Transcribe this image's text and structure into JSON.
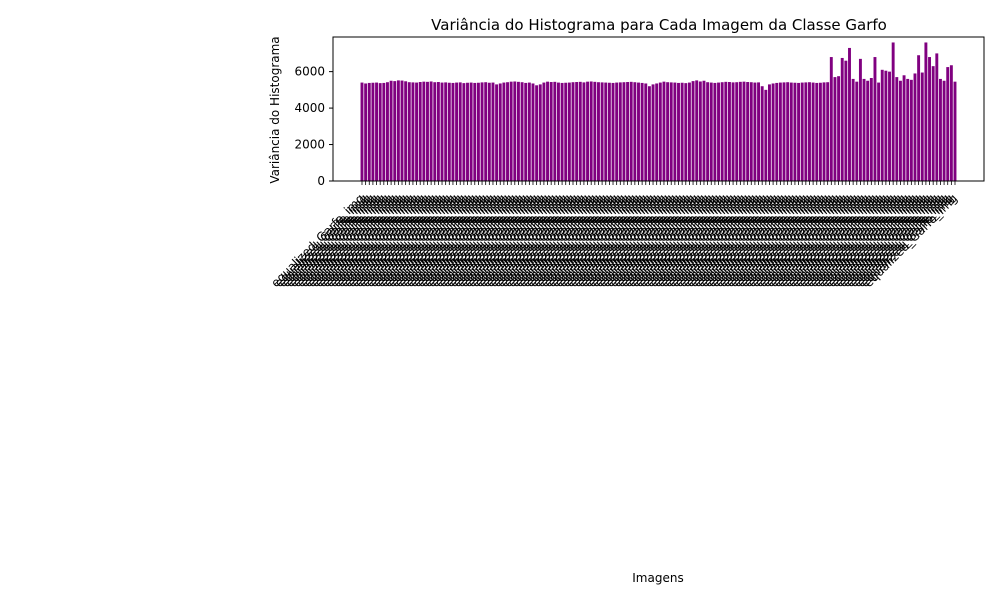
{
  "chart_data": {
    "type": "bar",
    "title": "Variância do Histograma para Cada Imagem da Classe Garfo",
    "xlabel": "Imagens",
    "ylabel": "Variância do Histograma",
    "ylim": [
      0,
      7900
    ],
    "yticks": [
      0,
      2000,
      4000,
      6000
    ],
    "bar_color": "#800080",
    "tick_label_text": "equalized_Garfo_img",
    "tick_label_rotation_deg": 45,
    "grid": false,
    "values": [
      5400,
      5350,
      5380,
      5390,
      5400,
      5370,
      5380,
      5420,
      5500,
      5480,
      5520,
      5510,
      5470,
      5420,
      5410,
      5400,
      5430,
      5450,
      5440,
      5460,
      5420,
      5430,
      5400,
      5410,
      5390,
      5380,
      5400,
      5410,
      5370,
      5390,
      5400,
      5380,
      5390,
      5410,
      5420,
      5390,
      5400,
      5300,
      5350,
      5400,
      5420,
      5450,
      5460,
      5440,
      5420,
      5380,
      5400,
      5350,
      5250,
      5300,
      5400,
      5450,
      5430,
      5440,
      5400,
      5380,
      5390,
      5400,
      5420,
      5430,
      5440,
      5410,
      5450,
      5460,
      5440,
      5420,
      5410,
      5400,
      5390,
      5380,
      5400,
      5410,
      5420,
      5430,
      5440,
      5420,
      5400,
      5380,
      5350,
      5200,
      5300,
      5350,
      5400,
      5450,
      5420,
      5410,
      5400,
      5380,
      5390,
      5370,
      5400,
      5480,
      5520,
      5460,
      5500,
      5420,
      5400,
      5380,
      5400,
      5420,
      5440,
      5430,
      5410,
      5420,
      5440,
      5450,
      5430,
      5420,
      5400,
      5410,
      5200,
      5000,
      5300,
      5350,
      5380,
      5400,
      5410,
      5420,
      5400,
      5390,
      5380,
      5400,
      5410,
      5420,
      5400,
      5380,
      5390,
      5410,
      5420,
      6800,
      5700,
      5750,
      6750,
      6600,
      7300,
      5600,
      5450,
      6700,
      5600,
      5500,
      5650,
      6800,
      5400,
      6100,
      6050,
      6000,
      7600,
      5700,
      5500,
      5800,
      5600,
      5550,
      5900,
      6900,
      5950,
      7600,
      6800,
      6300,
      7000,
      5600,
      5500,
      6250,
      6350,
      5450
    ]
  }
}
